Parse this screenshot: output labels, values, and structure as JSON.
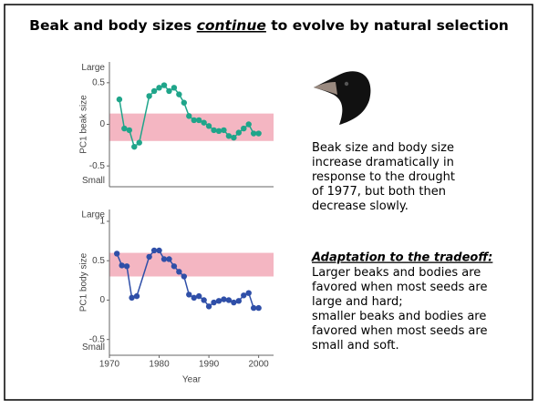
{
  "title_parts": [
    "Beak and body sizes ",
    "continue",
    " to evolve by natural selection"
  ],
  "description": [
    "Beak size and body size",
    "increase dramatically in",
    "response to the drought",
    "of 1977, but both then",
    "decrease slowly."
  ],
  "tradeoff_heading": "Adaptation to the tradeoff:",
  "tradeoff_text": [
    "Larger beaks and bodies are",
    "favored when most seeds are",
    "large and hard;",
    "smaller beaks and bodies are",
    "favored when most seeds are",
    "small and soft."
  ],
  "chart_data": [
    {
      "type": "line",
      "y_label": "PC1 beak size",
      "xlim": [
        1970,
        2003
      ],
      "ylim": [
        -0.75,
        0.75
      ],
      "yticks": [
        {
          "value": 0.68,
          "label": "Large"
        },
        0.5,
        0,
        -0.5,
        {
          "value": -0.68,
          "label": "Small"
        }
      ],
      "band": [
        -0.2,
        0.13
      ],
      "band_color": "#f4b6c2",
      "x": [
        1972,
        1973,
        1974,
        1975,
        1976,
        1978,
        1979,
        1980,
        1981,
        1982,
        1983,
        1984,
        1985,
        1986,
        1987,
        1988,
        1989,
        1990,
        1991,
        1992,
        1993,
        1994,
        1995,
        1996,
        1997,
        1998,
        1999,
        2000
      ],
      "series": [
        {
          "color": "#1fa58a",
          "values": [
            0.3,
            -0.05,
            -0.07,
            -0.27,
            -0.22,
            0.34,
            0.4,
            0.44,
            0.47,
            0.4,
            0.44,
            0.36,
            0.26,
            0.1,
            0.05,
            0.05,
            0.02,
            -0.02,
            -0.07,
            -0.08,
            -0.07,
            -0.14,
            -0.16,
            -0.1,
            -0.05,
            0,
            -0.11,
            -0.11
          ]
        }
      ]
    },
    {
      "type": "line",
      "y_label": "PC1 body size",
      "x_label": "Year",
      "xlim": [
        1970,
        2003
      ],
      "ylim": [
        -0.7,
        1.15
      ],
      "xticks": [
        1970,
        1980,
        1990,
        2000
      ],
      "yticks": [
        {
          "value": 1.08,
          "label": "Large"
        },
        1,
        0.5,
        0,
        -0.5,
        {
          "value": -0.6,
          "label": "Small"
        }
      ],
      "band": [
        0.3,
        0.6
      ],
      "band_color": "#f4b6c2",
      "x": [
        1971.5,
        1972.5,
        1973.5,
        1974.5,
        1975.5,
        1978,
        1979,
        1980,
        1981,
        1982,
        1983,
        1984,
        1985,
        1986,
        1987,
        1988,
        1989,
        1990,
        1991,
        1992,
        1993,
        1994,
        1995,
        1996,
        1997,
        1998,
        1999,
        2000
      ],
      "series": [
        {
          "color": "#2f4fa8",
          "values": [
            0.59,
            0.44,
            0.43,
            0.03,
            0.05,
            0.55,
            0.63,
            0.63,
            0.52,
            0.52,
            0.43,
            0.36,
            0.3,
            0.07,
            0.03,
            0.05,
            0,
            -0.08,
            -0.03,
            -0.01,
            0.01,
            0,
            -0.03,
            -0.01,
            0.06,
            0.09,
            -0.1,
            -0.1
          ]
        }
      ]
    }
  ]
}
